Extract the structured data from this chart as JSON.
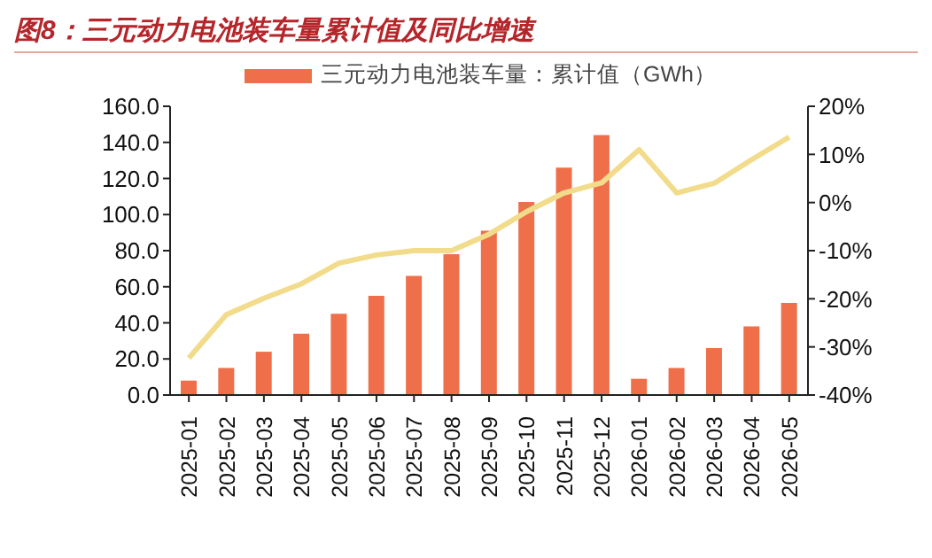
{
  "chart_data": {
    "type": "bar",
    "title": "图8：三元动力电池装车量累计值及同比增速",
    "categories": [
      "2025-01",
      "2025-02",
      "2025-03",
      "2025-04",
      "2025-05",
      "2025-06",
      "2025-07",
      "2025-08",
      "2025-09",
      "2025-10",
      "2025-11",
      "2025-12",
      "2026-01",
      "2026-02",
      "2026-03",
      "2026-04",
      "2026-05"
    ],
    "series": [
      {
        "name": "三元动力电池装车量：累计值（GWh）",
        "color": "#ee6f4a",
        "values": [
          8,
          15,
          24,
          34,
          45,
          55,
          66,
          78,
          91,
          107,
          126,
          144,
          9,
          15,
          26,
          38,
          51
        ]
      },
      {
        "type": "line",
        "axis": "y2",
        "color": "#f2dc8c",
        "values": [
          -32.3,
          -23.3,
          -19.9,
          -16.9,
          -12.6,
          -10.9,
          -10,
          -10,
          -6.6,
          -1.9,
          2,
          4.1,
          11,
          2,
          4,
          8.9,
          13.6
        ]
      }
    ],
    "ylim": [
      0,
      160
    ],
    "yticks": [
      {
        "value": 0,
        "label": "0.0"
      },
      {
        "value": 20,
        "label": "20.0"
      },
      {
        "value": 40,
        "label": "40.0"
      },
      {
        "value": 60,
        "label": "60.0"
      },
      {
        "value": 80,
        "label": "80.0"
      },
      {
        "value": 100,
        "label": "100.0"
      },
      {
        "value": 120,
        "label": "120.0"
      },
      {
        "value": 140,
        "label": "140.0"
      },
      {
        "value": 160,
        "label": "160.0"
      }
    ],
    "y2lim": [
      -40,
      20
    ],
    "y2ticks": [
      {
        "value": -40,
        "label": "-40%"
      },
      {
        "value": -30,
        "label": "-30%"
      },
      {
        "value": -20,
        "label": "-20%"
      },
      {
        "value": -10,
        "label": "-10%"
      },
      {
        "value": 0,
        "label": "0%"
      },
      {
        "value": 10,
        "label": "10%"
      },
      {
        "value": 20,
        "label": "20%"
      }
    ],
    "grid": false,
    "legend": "top",
    "marker": "none",
    "line_style": "solid"
  }
}
